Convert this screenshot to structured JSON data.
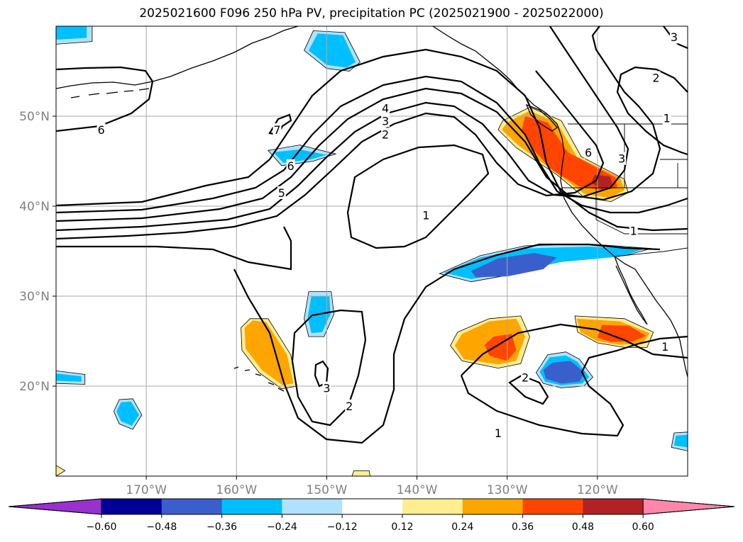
{
  "title": "2025021600 F096 250 hPa PV, precipitation PC (2025021900 - 2025022000)",
  "map": {
    "lon_min": -180,
    "lon_max": -110,
    "lat_min": 10,
    "lat_max": 60,
    "lat_ticks": [
      {
        "value": 20,
        "label": "20°N"
      },
      {
        "value": 30,
        "label": "30°N"
      },
      {
        "value": 40,
        "label": "40°N"
      },
      {
        "value": 50,
        "label": "50°N"
      }
    ],
    "lon_ticks": [
      {
        "value": -170,
        "label": "170°W"
      },
      {
        "value": -160,
        "label": "160°W"
      },
      {
        "value": -150,
        "label": "150°W"
      },
      {
        "value": -140,
        "label": "140°W"
      },
      {
        "value": -130,
        "label": "130°W"
      },
      {
        "value": -120,
        "label": "120°W"
      }
    ]
  },
  "colorbar": {
    "low_extend_color": "#9932cc",
    "high_extend_color": "#ff88aa",
    "colors": [
      "#000096",
      "#3a5fcd",
      "#00bfff",
      "#b0e2ff",
      "#ffffff",
      "#ffee90",
      "#ffa500",
      "#ff4500",
      "#b22222"
    ],
    "labels": [
      "−0.60",
      "−0.48",
      "−0.36",
      "−0.24",
      "−0.12",
      "0.12",
      "0.24",
      "0.36",
      "0.48",
      "0.60"
    ]
  },
  "contour_labels": [
    {
      "text": "6",
      "lon": -175,
      "lat": 48.5
    },
    {
      "text": "5",
      "lon": -155,
      "lat": 41.5
    },
    {
      "text": "6",
      "lon": -154,
      "lat": 44.5
    },
    {
      "text": "7",
      "lon": -155.5,
      "lat": 48.5
    },
    {
      "text": "4",
      "lon": -143.5,
      "lat": 50.9
    },
    {
      "text": "3",
      "lon": -143.5,
      "lat": 49.5
    },
    {
      "text": "2",
      "lon": -143.5,
      "lat": 48
    },
    {
      "text": "1",
      "lon": -139,
      "lat": 39
    },
    {
      "text": "6",
      "lon": -121,
      "lat": 46
    },
    {
      "text": "3",
      "lon": -117.3,
      "lat": 45.3
    },
    {
      "text": "2",
      "lon": -113.5,
      "lat": 54.3
    },
    {
      "text": "1",
      "lon": -112.3,
      "lat": 49.8
    },
    {
      "text": "3",
      "lon": -111.5,
      "lat": 58.8
    },
    {
      "text": "1",
      "lon": -116,
      "lat": 37.3
    },
    {
      "text": "1",
      "lon": -112.5,
      "lat": 24.4
    },
    {
      "text": "3",
      "lon": -150,
      "lat": 19.8
    },
    {
      "text": "2",
      "lon": -147.5,
      "lat": 17.8
    },
    {
      "text": "2",
      "lon": -128,
      "lat": 21
    },
    {
      "text": "1",
      "lon": -131,
      "lat": 14.8
    }
  ],
  "precip_regions": [
    {
      "class": "positive",
      "color": "#ffee90",
      "points": [
        [
          -130.5,
          49.5
        ],
        [
          -127.5,
          51
        ],
        [
          -124,
          49.5
        ],
        [
          -121.8,
          45.5
        ],
        [
          -117,
          43
        ],
        [
          -116.6,
          41.5
        ],
        [
          -118.5,
          40.5
        ],
        [
          -121.5,
          41
        ],
        [
          -124.5,
          43.5
        ],
        [
          -129,
          46.5
        ],
        [
          -131,
          48.5
        ]
      ]
    },
    {
      "class": "positive",
      "color": "#ffa500",
      "points": [
        [
          -130,
          49.3
        ],
        [
          -127.5,
          50.6
        ],
        [
          -124.5,
          49.3
        ],
        [
          -122.3,
          45.5
        ],
        [
          -117.5,
          43.2
        ],
        [
          -117,
          41.8
        ],
        [
          -118.6,
          40.9
        ],
        [
          -121.5,
          41.4
        ],
        [
          -124.7,
          43.8
        ],
        [
          -128.8,
          46.8
        ],
        [
          -130.6,
          48.5
        ]
      ]
    },
    {
      "class": "positive",
      "color": "#ff4500",
      "points": [
        [
          -128,
          50
        ],
        [
          -125.5,
          49.3
        ],
        [
          -123.3,
          46
        ],
        [
          -120.5,
          44.5
        ],
        [
          -118,
          43.2
        ],
        [
          -117.8,
          42
        ],
        [
          -119.6,
          41.8
        ],
        [
          -122,
          42.2
        ],
        [
          -125,
          44
        ],
        [
          -127.3,
          46.5
        ],
        [
          -128.4,
          48.5
        ]
      ]
    },
    {
      "class": "positive",
      "color": "#b22222",
      "points": [
        [
          -120.3,
          43.5
        ],
        [
          -118.6,
          43.3
        ],
        [
          -118.3,
          42.3
        ],
        [
          -119.5,
          41.9
        ],
        [
          -120.7,
          42.6
        ]
      ]
    },
    {
      "class": "positive",
      "color": "#ffee90",
      "points": [
        [
          -158.5,
          27.5
        ],
        [
          -156.5,
          27.5
        ],
        [
          -154,
          23.5
        ],
        [
          -153.3,
          20
        ],
        [
          -155,
          19.7
        ],
        [
          -157.5,
          21.5
        ],
        [
          -159.4,
          24
        ],
        [
          -159.5,
          26.5
        ]
      ]
    },
    {
      "class": "positive",
      "color": "#ffa500",
      "points": [
        [
          -158.2,
          27.3
        ],
        [
          -156.7,
          27.1
        ],
        [
          -154.4,
          23.5
        ],
        [
          -153.7,
          20.3
        ],
        [
          -154.9,
          20.1
        ],
        [
          -157.2,
          21.8
        ],
        [
          -159,
          24.2
        ],
        [
          -159.1,
          26.5
        ]
      ]
    },
    {
      "class": "positive",
      "color": "#ffee90",
      "points": [
        [
          -135.5,
          26
        ],
        [
          -132,
          27.5
        ],
        [
          -128.5,
          27.8
        ],
        [
          -127.5,
          25.5
        ],
        [
          -128.5,
          22.5
        ],
        [
          -131,
          22
        ],
        [
          -135,
          22.8
        ],
        [
          -136.3,
          24.5
        ]
      ]
    },
    {
      "class": "positive",
      "color": "#ffa500",
      "points": [
        [
          -135,
          25.8
        ],
        [
          -132,
          27.2
        ],
        [
          -129,
          27.5
        ],
        [
          -128,
          25.5
        ],
        [
          -129,
          22.8
        ],
        [
          -131,
          22.4
        ],
        [
          -134.8,
          23
        ],
        [
          -135.8,
          24.5
        ]
      ]
    },
    {
      "class": "positive",
      "color": "#ff4500",
      "points": [
        [
          -131.5,
          25.5
        ],
        [
          -129.5,
          25.8
        ],
        [
          -129,
          24
        ],
        [
          -130,
          22.8
        ],
        [
          -132,
          23.4
        ],
        [
          -132.5,
          24.6
        ]
      ]
    },
    {
      "class": "positive",
      "color": "#ffee90",
      "points": [
        [
          -122.5,
          27.8
        ],
        [
          -117,
          27.5
        ],
        [
          -113.8,
          26
        ],
        [
          -114.5,
          24.3
        ],
        [
          -117,
          24.3
        ],
        [
          -120,
          24.8
        ],
        [
          -122.2,
          26
        ]
      ]
    },
    {
      "class": "positive",
      "color": "#ffa500",
      "points": [
        [
          -122.3,
          27.5
        ],
        [
          -117.5,
          27.2
        ],
        [
          -114.2,
          25.9
        ],
        [
          -115,
          24.7
        ],
        [
          -117.5,
          24.6
        ],
        [
          -120,
          25
        ],
        [
          -121.9,
          26
        ]
      ]
    },
    {
      "class": "positive",
      "color": "#ff4500",
      "points": [
        [
          -119.5,
          26.8
        ],
        [
          -116.5,
          26.7
        ],
        [
          -114.6,
          25.6
        ],
        [
          -116,
          25
        ],
        [
          -118.5,
          24.9
        ],
        [
          -120,
          25.4
        ]
      ]
    },
    {
      "class": "positive",
      "color": "#ffee90",
      "points": [
        [
          -147,
          10.6
        ],
        [
          -145.3,
          10.6
        ],
        [
          -145.2,
          10
        ],
        [
          -147.2,
          10
        ]
      ]
    },
    {
      "class": "positive",
      "color": "#ffee90",
      "points": [
        [
          -180,
          11.2
        ],
        [
          -179,
          10.6
        ],
        [
          -180,
          10
        ]
      ]
    },
    {
      "class": "negative",
      "color": "#b0e2ff",
      "points": [
        [
          -137.5,
          32.5
        ],
        [
          -133,
          34.5
        ],
        [
          -128,
          35.6
        ],
        [
          -121,
          35.8
        ],
        [
          -114,
          35.3
        ],
        [
          -117,
          34.5
        ],
        [
          -124,
          34
        ],
        [
          -129,
          32.5
        ],
        [
          -134,
          31.6
        ]
      ]
    },
    {
      "class": "negative",
      "color": "#00bfff",
      "points": [
        [
          -137,
          32.6
        ],
        [
          -133,
          34.3
        ],
        [
          -128,
          35.3
        ],
        [
          -121,
          35.5
        ],
        [
          -115,
          35.2
        ],
        [
          -117.5,
          34.4
        ],
        [
          -124,
          33.8
        ],
        [
          -129,
          32.7
        ],
        [
          -134,
          31.9
        ]
      ]
    },
    {
      "class": "negative",
      "color": "#3a5fcd",
      "points": [
        [
          -134,
          32.8
        ],
        [
          -131,
          34.2
        ],
        [
          -127,
          34.8
        ],
        [
          -124.5,
          34.3
        ],
        [
          -126,
          33
        ],
        [
          -130,
          32.2
        ],
        [
          -133.5,
          32.1
        ]
      ]
    },
    {
      "class": "negative",
      "color": "#b0e2ff",
      "points": [
        [
          -125.5,
          23.5
        ],
        [
          -123.5,
          23.8
        ],
        [
          -122,
          23
        ],
        [
          -120.5,
          21
        ],
        [
          -121.5,
          20
        ],
        [
          -124,
          19.8
        ],
        [
          -126,
          20.3
        ],
        [
          -126.8,
          21.5
        ]
      ]
    },
    {
      "class": "negative",
      "color": "#00bfff",
      "points": [
        [
          -125.3,
          23.2
        ],
        [
          -123.5,
          23.4
        ],
        [
          -122.2,
          22.7
        ],
        [
          -120.9,
          21
        ],
        [
          -121.7,
          20.3
        ],
        [
          -124,
          20.1
        ],
        [
          -125.8,
          20.5
        ],
        [
          -126.4,
          21.6
        ]
      ]
    },
    {
      "class": "negative",
      "color": "#3a5fcd",
      "points": [
        [
          -125,
          22.6
        ],
        [
          -123,
          22.8
        ],
        [
          -121.4,
          21.5
        ],
        [
          -122,
          20.5
        ],
        [
          -124,
          20.3
        ],
        [
          -125.7,
          20.8
        ],
        [
          -126,
          21.8
        ]
      ]
    },
    {
      "class": "negative",
      "color": "#b0e2ff",
      "points": [
        [
          -152,
          30.5
        ],
        [
          -149.5,
          30.5
        ],
        [
          -149.2,
          28
        ],
        [
          -150.3,
          25.5
        ],
        [
          -152,
          25.5
        ],
        [
          -152.5,
          27.5
        ]
      ]
    },
    {
      "class": "negative",
      "color": "#00bfff",
      "points": [
        [
          -151.7,
          30
        ],
        [
          -149.7,
          30
        ],
        [
          -149.6,
          28
        ],
        [
          -150.5,
          26
        ],
        [
          -151.7,
          25.9
        ],
        [
          -152.1,
          27.7
        ]
      ]
    },
    {
      "class": "negative",
      "color": "#b0e2ff",
      "points": [
        [
          -151.5,
          59.5
        ],
        [
          -148,
          59.3
        ],
        [
          -146.3,
          56
        ],
        [
          -147.5,
          55
        ],
        [
          -150,
          55.3
        ],
        [
          -152.5,
          57.3
        ]
      ]
    },
    {
      "class": "negative",
      "color": "#00bfff",
      "points": [
        [
          -151,
          59.2
        ],
        [
          -148.2,
          59
        ],
        [
          -146.8,
          56
        ],
        [
          -147.8,
          55.4
        ],
        [
          -150,
          55.7
        ],
        [
          -152,
          57.3
        ]
      ]
    },
    {
      "class": "negative",
      "color": "#b0e2ff",
      "points": [
        [
          -180,
          60
        ],
        [
          -176,
          60
        ],
        [
          -176,
          58.3
        ],
        [
          -180,
          58
        ]
      ]
    },
    {
      "class": "negative",
      "color": "#00bfff",
      "points": [
        [
          -180,
          60
        ],
        [
          -176.6,
          60
        ],
        [
          -176.6,
          58.7
        ],
        [
          -180,
          58.5
        ]
      ]
    },
    {
      "class": "negative",
      "color": "#b0e2ff",
      "points": [
        [
          -156.5,
          46.2
        ],
        [
          -153,
          46.8
        ],
        [
          -149,
          45.8
        ],
        [
          -151.5,
          45
        ],
        [
          -155,
          44.5
        ]
      ]
    },
    {
      "class": "negative",
      "color": "#00bfff",
      "points": [
        [
          -155.9,
          46
        ],
        [
          -153,
          46.3
        ],
        [
          -150,
          45.7
        ],
        [
          -151.8,
          45.2
        ],
        [
          -154.8,
          44.8
        ]
      ]
    },
    {
      "class": "negative",
      "color": "#b0e2ff",
      "points": [
        [
          -173,
          18.5
        ],
        [
          -171.5,
          18.6
        ],
        [
          -170.5,
          16.8
        ],
        [
          -171.5,
          15.2
        ],
        [
          -173,
          15.8
        ],
        [
          -173.6,
          17.2
        ]
      ]
    },
    {
      "class": "negative",
      "color": "#00bfff",
      "points": [
        [
          -172.8,
          18.2
        ],
        [
          -171.7,
          18.3
        ],
        [
          -170.8,
          16.8
        ],
        [
          -171.6,
          15.6
        ],
        [
          -172.8,
          16.1
        ],
        [
          -173.3,
          17.2
        ]
      ]
    },
    {
      "class": "negative",
      "color": "#b0e2ff",
      "points": [
        [
          -180,
          21.7
        ],
        [
          -176.8,
          21.3
        ],
        [
          -176.8,
          20.2
        ],
        [
          -180,
          20.3
        ]
      ]
    },
    {
      "class": "negative",
      "color": "#00bfff",
      "points": [
        [
          -180,
          21.4
        ],
        [
          -177.2,
          21.1
        ],
        [
          -177.2,
          20.5
        ],
        [
          -180,
          20.6
        ]
      ]
    },
    {
      "class": "negative",
      "color": "#b0e2ff",
      "points": [
        [
          -111.5,
          14.8
        ],
        [
          -110,
          14.9
        ],
        [
          -110,
          12.8
        ],
        [
          -111.8,
          13.2
        ]
      ]
    },
    {
      "class": "negative",
      "color": "#00bfff",
      "points": [
        [
          -111.3,
          14.5
        ],
        [
          -110,
          14.6
        ],
        [
          -110,
          13.2
        ],
        [
          -111.5,
          13.4
        ]
      ]
    }
  ]
}
